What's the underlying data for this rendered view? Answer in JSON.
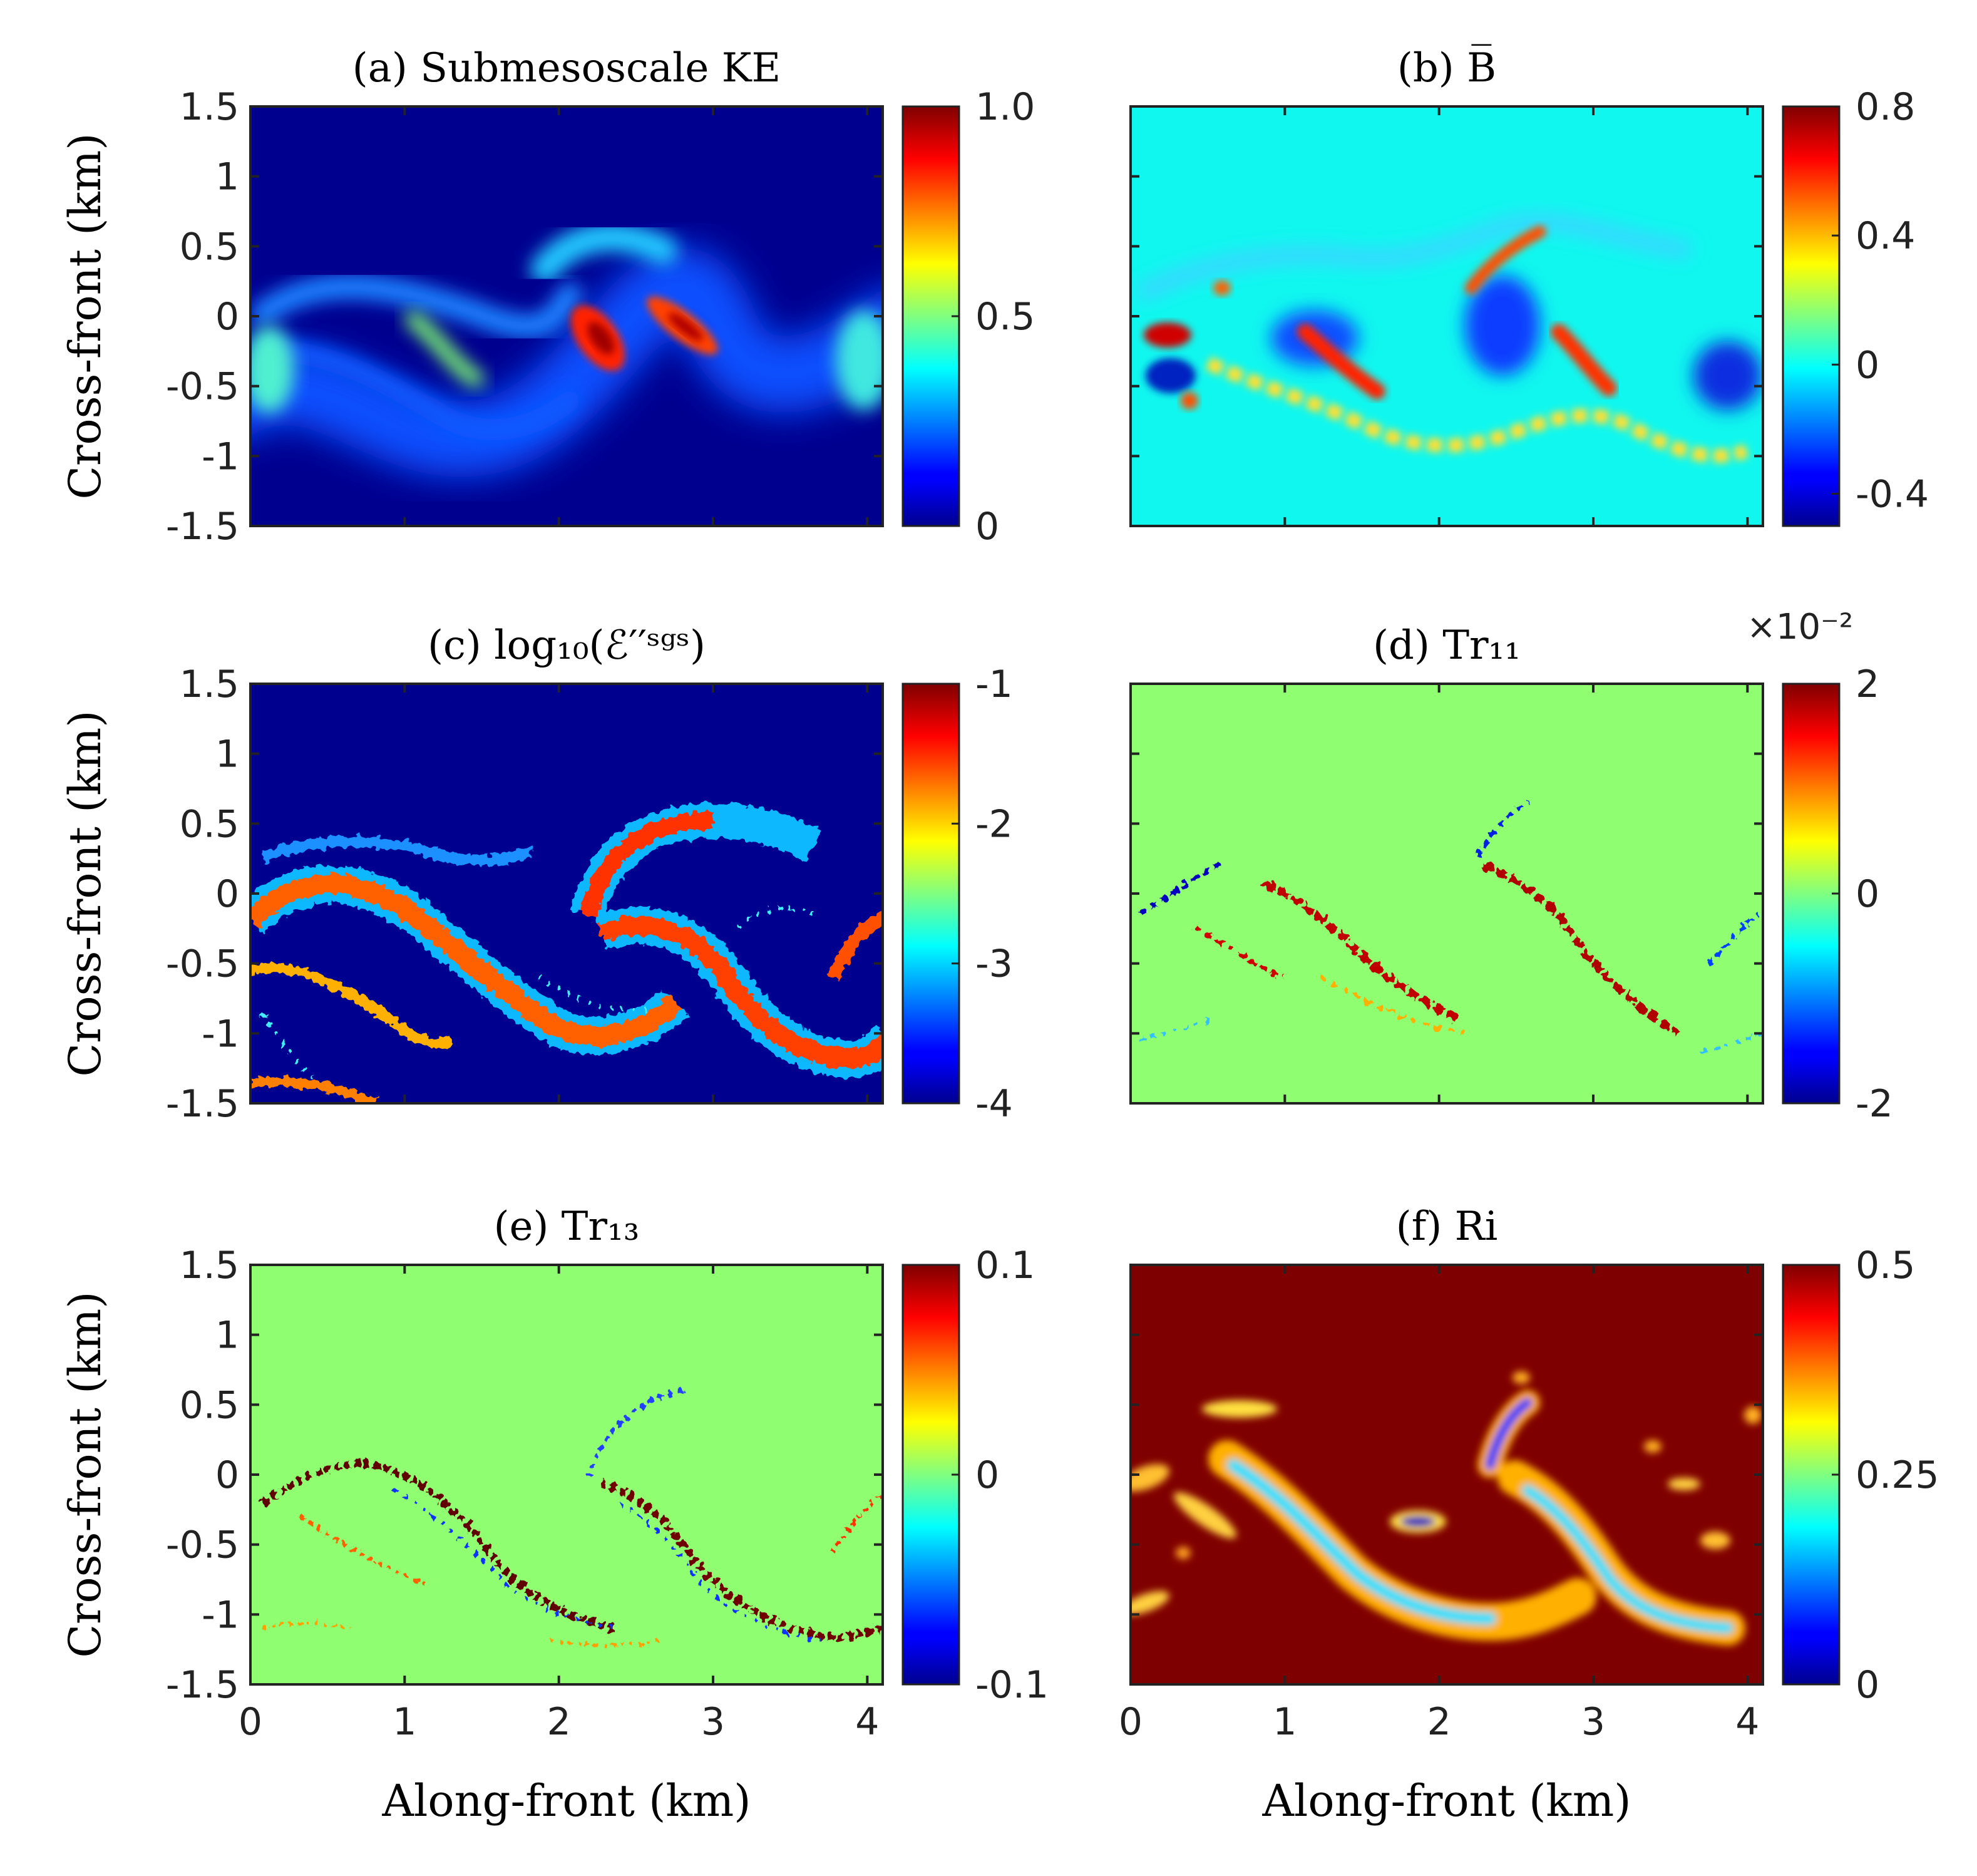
{
  "chart_data": [
    {
      "type": "heatmap",
      "id": "a",
      "title": "(a) Submesoscale KE",
      "xlabel": "",
      "ylabel": "Cross-front (km)",
      "xlim": [
        0,
        4.1
      ],
      "ylim": [
        -1.5,
        1.5
      ],
      "x_ticks": [
        "0",
        "1",
        "2",
        "3",
        "4"
      ],
      "y_ticks": [
        "1.5",
        "1",
        "0.5",
        "0",
        "-0.5",
        "-1",
        "-1.5"
      ],
      "colorbar": {
        "range": [
          0,
          1.0
        ],
        "ticks": [
          {
            "v": 1.0,
            "label": "1.0"
          },
          {
            "v": 0.5,
            "label": "0.5"
          },
          {
            "v": 0,
            "label": "0"
          }
        ]
      },
      "background": "#00008f",
      "field": "filaments"
    },
    {
      "type": "heatmap",
      "id": "b",
      "title": "(b) B̅",
      "xlabel": "",
      "ylabel": "",
      "xlim": [
        0,
        4.1
      ],
      "ylim": [
        -1.5,
        1.5
      ],
      "x_ticks": [
        "0",
        "1",
        "2",
        "3",
        "4"
      ],
      "y_ticks": [
        "1.5",
        "1",
        "0.5",
        "0",
        "-0.5",
        "-1",
        "-1.5"
      ],
      "colorbar": {
        "range": [
          -0.5,
          0.8
        ],
        "ticks": [
          {
            "v": 0.8,
            "label": "0.8"
          },
          {
            "v": 0.4,
            "label": "0.4"
          },
          {
            "v": 0,
            "label": "0"
          },
          {
            "v": -0.4,
            "label": "-0.4"
          }
        ]
      },
      "background": "#10f7ef",
      "field": "mixed-sign"
    },
    {
      "type": "heatmap",
      "id": "c",
      "title": "(c) log₁₀(ℰ′′ˢᵍˢ)",
      "xlabel": "",
      "ylabel": "Cross-front (km)",
      "xlim": [
        0,
        4.1
      ],
      "ylim": [
        -1.5,
        1.5
      ],
      "x_ticks": [
        "0",
        "1",
        "2",
        "3",
        "4"
      ],
      "y_ticks": [
        "1.5",
        "1",
        "0.5",
        "0",
        "-0.5",
        "-1",
        "-1.5"
      ],
      "colorbar": {
        "range": [
          -4,
          -1
        ],
        "ticks": [
          {
            "v": -1,
            "label": "-1"
          },
          {
            "v": -2,
            "label": "-2"
          },
          {
            "v": -3,
            "label": "-3"
          },
          {
            "v": -4,
            "label": "-4"
          }
        ]
      },
      "background": "#00008f",
      "field": "filaments"
    },
    {
      "type": "heatmap",
      "id": "d",
      "title": "(d) Tr₁₁",
      "multiplier": "×10⁻²",
      "xlabel": "",
      "ylabel": "",
      "xlim": [
        0,
        4.1
      ],
      "ylim": [
        -1.5,
        1.5
      ],
      "x_ticks": [
        "0",
        "1",
        "2",
        "3",
        "4"
      ],
      "y_ticks": [
        "1.5",
        "1",
        "0.5",
        "0",
        "-0.5",
        "-1",
        "-1.5"
      ],
      "colorbar": {
        "range": [
          -2,
          2
        ],
        "ticks": [
          {
            "v": 2,
            "label": "2"
          },
          {
            "v": 0,
            "label": "0"
          },
          {
            "v": -2,
            "label": "-2"
          }
        ]
      },
      "background": "#8ffe70",
      "field": "thin-lines"
    },
    {
      "type": "heatmap",
      "id": "e",
      "title": "(e) Tr₁₃",
      "xlabel": "Along-front (km)",
      "ylabel": "Cross-front (km)",
      "xlim": [
        0,
        4.1
      ],
      "ylim": [
        -1.5,
        1.5
      ],
      "x_ticks": [
        "0",
        "1",
        "2",
        "3",
        "4"
      ],
      "y_ticks": [
        "1.5",
        "1",
        "0.5",
        "0",
        "-0.5",
        "-1",
        "-1.5"
      ],
      "colorbar": {
        "range": [
          -0.1,
          0.1
        ],
        "ticks": [
          {
            "v": 0.1,
            "label": "0.1"
          },
          {
            "v": 0,
            "label": "0"
          },
          {
            "v": -0.1,
            "label": "-0.1"
          }
        ]
      },
      "background": "#8ffe70",
      "field": "thin-lines"
    },
    {
      "type": "heatmap",
      "id": "f",
      "title": "(f) Ri",
      "xlabel": "Along-front (km)",
      "ylabel": "",
      "xlim": [
        0,
        4.1
      ],
      "ylim": [
        -1.5,
        1.5
      ],
      "x_ticks": [
        "0",
        "1",
        "2",
        "3",
        "4"
      ],
      "y_ticks": [
        "1.5",
        "1",
        "0.5",
        "0",
        "-0.5",
        "-1",
        "-1.5"
      ],
      "colorbar": {
        "range": [
          0,
          0.5
        ],
        "ticks": [
          {
            "v": 0.5,
            "label": "0.5"
          },
          {
            "v": 0.25,
            "label": "0.25"
          },
          {
            "v": 0,
            "label": "0"
          }
        ]
      },
      "background": "#7f0000",
      "field": "patches"
    }
  ],
  "colormap": "jet"
}
